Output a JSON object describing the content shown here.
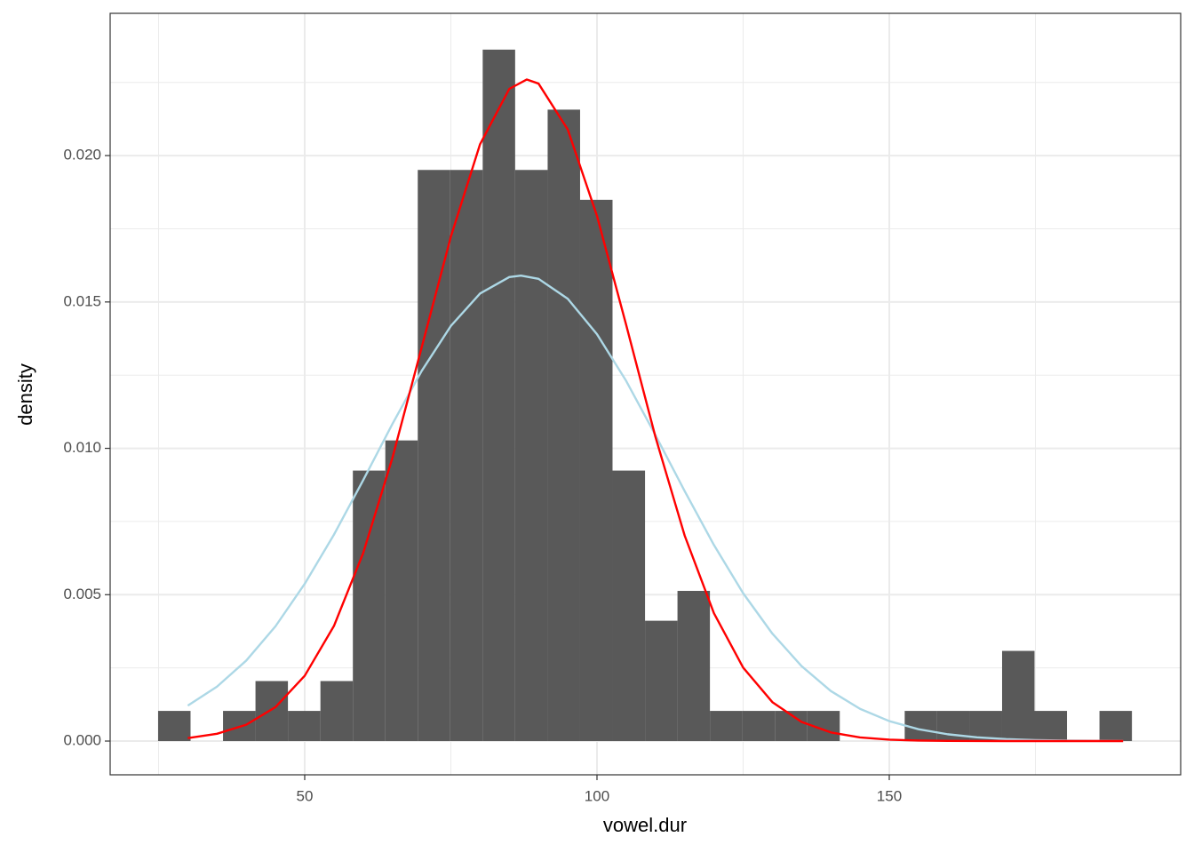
{
  "chart_data": {
    "type": "histogram",
    "x_label": "vowel.dur",
    "y_label": "density",
    "bins": [
      24.92,
      30.47,
      36.03,
      41.58,
      47.13,
      52.69,
      58.24,
      63.79,
      69.34,
      74.9,
      80.45,
      86.0,
      91.56,
      97.11,
      102.66,
      108.22,
      113.77,
      119.32,
      124.87,
      130.43,
      135.98,
      141.53,
      147.09,
      152.64,
      158.19,
      163.75,
      169.3,
      174.85,
      180.4,
      185.96,
      191.51
    ],
    "values": [
      0.00103,
      0,
      0.00103,
      0.00205,
      0.00103,
      0.00205,
      0.00924,
      0.01027,
      0.01951,
      0.01951,
      0.02362,
      0.01951,
      0.02157,
      0.01849,
      0.00924,
      0.00411,
      0.00513,
      0.00103,
      0.00103,
      0.00103,
      0.00103,
      0,
      0,
      0.00103,
      0.00103,
      0.00103,
      0.00308,
      0.00103,
      0,
      0.00103
    ],
    "color": "#595959",
    "series": [
      {
        "color": "#add8e6",
        "x": [
          30,
          35,
          40,
          45,
          50,
          55,
          60,
          65,
          70,
          75,
          80,
          85,
          87,
          90,
          95,
          100,
          105,
          110,
          115,
          120,
          125,
          130,
          135,
          140,
          145,
          150,
          155,
          160,
          165,
          170,
          175,
          180,
          185,
          190
        ],
        "values": [
          0.00121,
          0.00186,
          0.00275,
          0.00392,
          0.00537,
          0.00705,
          0.00891,
          0.01083,
          0.01264,
          0.01418,
          0.01529,
          0.01585,
          0.0159,
          0.01579,
          0.01511,
          0.0139,
          0.0123,
          0.01045,
          0.00854,
          0.0067,
          0.00505,
          0.00367,
          0.00256,
          0.00171,
          0.0011,
          0.000682,
          0.000405,
          0.000232,
          0.000127,
          6.71e-05,
          3.4e-05,
          1.66e-05,
          7.8e-06,
          3.5e-06
        ]
      },
      {
        "color": "#ff0000",
        "x": [
          30,
          35,
          40,
          45,
          50,
          55,
          60,
          65,
          70,
          75,
          80,
          85,
          88,
          90,
          95,
          100,
          105,
          110,
          115,
          120,
          125,
          130,
          135,
          140,
          145,
          150,
          155,
          160,
          165,
          170,
          180,
          190
        ],
        "values": [
          0.000102,
          0.000249,
          0.000559,
          0.00116,
          0.00223,
          0.00393,
          0.00642,
          0.00967,
          0.01344,
          0.01723,
          0.02039,
          0.02228,
          0.0226,
          0.02246,
          0.02089,
          0.01794,
          0.01421,
          0.01039,
          0.00702,
          0.00437,
          0.00251,
          0.00133,
          0.000652,
          0.000295,
          0.000123,
          4.72e-05,
          1.68e-05,
          5.5e-06,
          1.7e-06,
          0,
          0,
          0
        ]
      }
    ],
    "xlim": [
      16.72,
      199.85
    ],
    "ylim": [
      -0.001153,
      0.02486
    ],
    "xticks": [
      50,
      100,
      150
    ],
    "yticks": [
      {
        "value": 0,
        "label": "0.000"
      },
      {
        "value": 0.005,
        "label": "0.005"
      },
      {
        "value": 0.01,
        "label": "0.010"
      },
      {
        "value": 0.015,
        "label": "0.015"
      },
      {
        "value": 0.02,
        "label": "0.020"
      }
    ],
    "grid": true
  }
}
